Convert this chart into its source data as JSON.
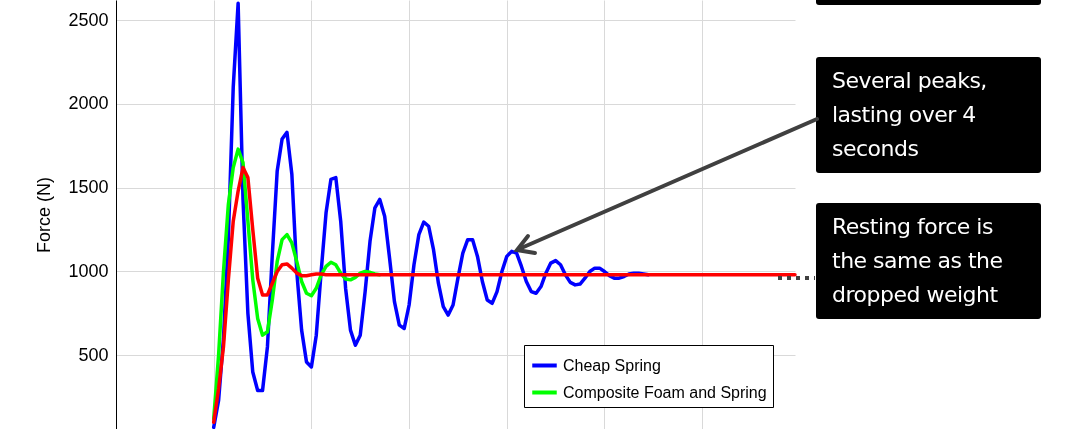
{
  "chart_data": {
    "type": "line",
    "ylabel": "Force (N)",
    "categories": [
      null,
      null,
      null,
      null,
      null,
      null,
      null,
      null,
      null,
      null,
      null,
      null,
      null,
      null,
      null,
      null,
      null,
      null,
      null,
      null,
      null,
      null,
      null,
      null,
      null,
      null,
      null,
      null,
      null,
      null,
      null,
      null,
      null,
      null,
      null,
      null,
      null,
      null,
      null,
      null,
      null,
      null,
      null,
      null,
      null,
      null,
      null,
      null,
      null,
      null,
      null,
      null,
      null,
      null,
      null,
      null,
      null,
      null,
      null,
      null,
      null,
      null,
      null,
      null,
      null,
      null,
      null,
      null,
      null,
      null,
      null,
      null,
      null,
      null,
      null,
      null,
      null,
      null,
      null,
      null,
      null,
      null,
      null,
      null,
      null,
      null,
      null,
      null,
      null,
      null,
      null,
      null,
      null,
      null,
      null,
      null,
      null,
      null,
      null,
      null,
      null,
      null,
      null,
      null,
      null,
      null,
      null,
      null,
      null,
      null,
      null,
      null,
      null,
      null,
      null,
      null,
      null,
      null,
      null,
      null,
      null,
      null,
      null,
      null,
      null,
      null,
      null,
      null,
      null,
      null,
      null,
      null,
      null,
      null,
      null,
      null,
      null,
      null,
      null,
      null
    ],
    "series": [
      {
        "name": "Cheap Spring",
        "color": "#0000ff",
        "values": [
          null,
          null,
          null,
          null,
          null,
          null,
          null,
          null,
          null,
          null,
          null,
          null,
          null,
          null,
          null,
          null,
          null,
          null,
          null,
          null,
          70,
          230,
          600,
          1200,
          2100,
          2600,
          1430,
          750,
          400,
          290,
          290,
          550,
          1100,
          1600,
          1790,
          1830,
          1580,
          1000,
          650,
          460,
          430,
          620,
          1000,
          1350,
          1550,
          1560,
          1300,
          900,
          650,
          560,
          620,
          880,
          1180,
          1380,
          1430,
          1330,
          1080,
          820,
          680,
          660,
          800,
          1040,
          1220,
          1295,
          1270,
          1130,
          930,
          790,
          740,
          800,
          960,
          1110,
          1190,
          1190,
          1090,
          940,
          830,
          810,
          880,
          1000,
          1090,
          1120,
          1110,
          1030,
          940,
          880,
          870,
          910,
          990,
          1050,
          1065,
          1040,
          980,
          935,
          920,
          925,
          960,
          1000,
          1020,
          1020,
          1000,
          975,
          960,
          960,
          970,
          985,
          990,
          990,
          985,
          980,
          null,
          null,
          null,
          null,
          null,
          null,
          null,
          null,
          null,
          null,
          null,
          null,
          null,
          null,
          null,
          null,
          null,
          null,
          null,
          null,
          null,
          null,
          null,
          null,
          null,
          null,
          null,
          null,
          null,
          null
        ]
      },
      {
        "name": "Composite Foam and Spring",
        "color": "#00ff00",
        "values": [
          null,
          null,
          null,
          null,
          null,
          null,
          null,
          null,
          null,
          null,
          null,
          null,
          null,
          null,
          null,
          null,
          null,
          null,
          null,
          null,
          120,
          500,
          1000,
          1400,
          1620,
          1730,
          1650,
          1300,
          950,
          720,
          620,
          640,
          830,
          1060,
          1190,
          1220,
          1170,
          1060,
          940,
          870,
          855,
          900,
          980,
          1030,
          1055,
          1040,
          990,
          955,
          950,
          965,
          990,
          1000,
          995,
          985,
          980,
          null,
          null,
          null,
          null,
          null,
          null,
          null,
          null,
          null,
          null,
          null,
          null,
          null,
          null,
          null,
          null,
          null,
          null,
          null,
          null,
          null,
          null,
          null,
          null,
          null,
          null,
          null,
          null,
          null,
          null,
          null,
          null,
          null,
          null,
          null,
          null,
          null,
          null,
          null,
          null,
          null,
          null,
          null,
          null,
          null,
          null,
          null,
          null,
          null,
          null,
          null,
          null,
          null,
          null,
          null,
          null,
          null,
          null,
          null,
          null,
          null,
          null,
          null,
          null,
          null,
          null,
          null,
          null,
          null,
          null,
          null,
          null,
          null,
          null,
          null,
          null,
          null,
          null,
          null,
          null,
          null,
          null,
          null,
          null,
          null
        ]
      },
      {
        "color": "#ff0000",
        "values": [
          null,
          null,
          null,
          null,
          null,
          null,
          null,
          null,
          null,
          null,
          null,
          null,
          null,
          null,
          null,
          null,
          null,
          null,
          null,
          null,
          100,
          300,
          550,
          950,
          1300,
          1480,
          1620,
          1560,
          1250,
          960,
          860,
          860,
          930,
          1000,
          1040,
          1045,
          1020,
          990,
          975,
          975,
          980,
          985,
          985,
          980,
          980,
          980,
          980,
          980,
          980,
          980,
          980,
          980,
          980,
          980,
          980,
          980,
          980,
          980,
          980,
          980,
          980,
          980,
          980,
          980,
          980,
          980,
          980,
          980,
          980,
          980,
          980,
          980,
          980,
          980,
          980,
          980,
          980,
          980,
          980,
          980,
          980,
          980,
          980,
          980,
          980,
          980,
          980,
          980,
          980,
          980,
          980,
          980,
          980,
          980,
          980,
          980,
          980,
          980,
          980,
          980,
          980,
          980,
          980,
          980,
          980,
          980,
          980,
          980,
          980,
          980,
          980,
          980,
          980,
          980,
          980,
          980,
          980,
          980,
          980,
          980,
          980,
          980,
          980,
          980,
          980,
          980,
          980,
          980,
          980,
          980,
          980,
          980,
          980,
          980,
          980,
          980,
          980,
          980,
          980,
          980
        ]
      }
    ],
    "ylim": [
      60,
      2620
    ],
    "yticks": [
      500,
      1000,
      1500,
      2000,
      2500
    ],
    "grid": true,
    "legend": "bottom right",
    "tick_labels": "y",
    "annotations": [
      "Several peaks, lasting over 4 seconds",
      "Resting force is the same as the dropped weight"
    ]
  }
}
